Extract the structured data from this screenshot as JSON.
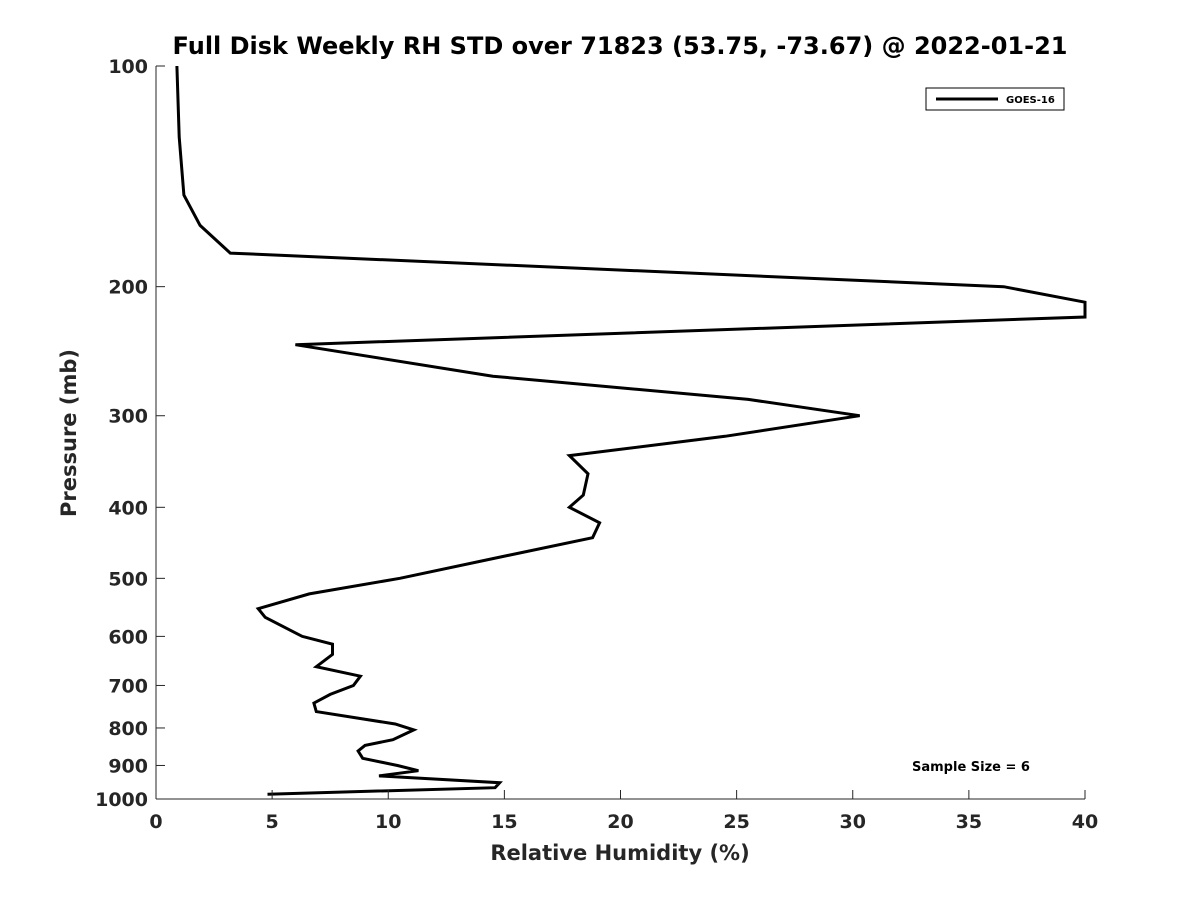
{
  "chart_data": {
    "type": "line",
    "title": "Full Disk Weekly RH STD over 71823 (53.75, -73.67) @ 2022-01-21",
    "xlabel": "Relative Humidity (%)",
    "ylabel": "Pressure (mb)",
    "xlim": [
      0,
      40
    ],
    "ylim": [
      100,
      1000
    ],
    "yscale": "log",
    "yreversed": true,
    "xticks": [
      0,
      5,
      10,
      15,
      20,
      25,
      30,
      35,
      40
    ],
    "yticks": [
      100,
      200,
      300,
      400,
      500,
      600,
      700,
      800,
      900,
      1000
    ],
    "grid": false,
    "legend_position": "top-right",
    "annotation": "Sample Size = 6",
    "series": [
      {
        "name": "GOES-16",
        "color": "#000000",
        "points": [
          [
            0.9,
            100
          ],
          [
            1.0,
            125
          ],
          [
            1.2,
            150
          ],
          [
            1.9,
            165
          ],
          [
            3.2,
            180
          ],
          [
            36.5,
            200
          ],
          [
            40.0,
            210
          ],
          [
            40.0,
            220
          ],
          [
            6.0,
            240
          ],
          [
            14.5,
            265
          ],
          [
            25.5,
            285
          ],
          [
            30.3,
            300
          ],
          [
            24.5,
            320
          ],
          [
            17.8,
            340
          ],
          [
            18.6,
            360
          ],
          [
            18.4,
            385
          ],
          [
            17.8,
            400
          ],
          [
            19.1,
            420
          ],
          [
            18.8,
            440
          ],
          [
            14.5,
            470
          ],
          [
            10.5,
            500
          ],
          [
            6.6,
            525
          ],
          [
            4.4,
            550
          ],
          [
            4.7,
            565
          ],
          [
            6.3,
            600
          ],
          [
            7.6,
            615
          ],
          [
            7.6,
            635
          ],
          [
            6.9,
            660
          ],
          [
            8.8,
            680
          ],
          [
            8.5,
            700
          ],
          [
            7.5,
            720
          ],
          [
            6.8,
            740
          ],
          [
            6.9,
            760
          ],
          [
            10.3,
            790
          ],
          [
            11.1,
            805
          ],
          [
            10.2,
            830
          ],
          [
            9.0,
            845
          ],
          [
            8.7,
            860
          ],
          [
            8.9,
            880
          ],
          [
            10.4,
            900
          ],
          [
            11.3,
            915
          ],
          [
            9.6,
            930
          ],
          [
            14.8,
            950
          ],
          [
            14.6,
            965
          ],
          [
            4.8,
            985
          ]
        ]
      }
    ]
  }
}
